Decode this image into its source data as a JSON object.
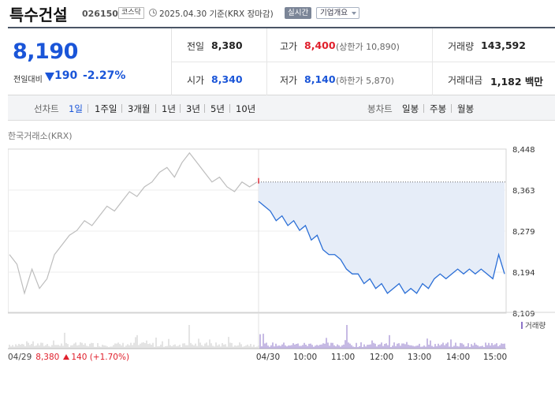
{
  "header": {
    "name": "특수건설",
    "code": "026150",
    "market": "코스닥",
    "date": "2025.04.30 기준(KRX 장마감)",
    "realtime": "실시간",
    "company_overview": "기업개요"
  },
  "summary": {
    "current_price": "8,190",
    "change_label": "전일대비",
    "change_amount": "190",
    "change_pct": "-2.27%",
    "prev_close_label": "전일",
    "prev_close": "8,380",
    "high_label": "고가",
    "high": "8,400",
    "upper_limit": "(상한가 10,890)",
    "volume_label": "거래량",
    "volume": "143,592",
    "open_label": "시가",
    "open": "8,340",
    "low_label": "저가",
    "low": "8,140",
    "lower_limit": "(하한가 5,870)",
    "amount_label": "거래대금",
    "amount": "1,182 백만"
  },
  "period_bar": {
    "line_chart_label": "선차트",
    "line_periods": [
      "1일",
      "1주일",
      "3개월",
      "1년",
      "3년",
      "5년",
      "10년"
    ],
    "active_period": "1일",
    "candle_chart_label": "봉차트",
    "candle_periods": [
      "일봉",
      "주봉",
      "월봉"
    ]
  },
  "chart": {
    "source": "한국거래소(KRX)",
    "volume_legend": "거래량",
    "prev_day_label": "04/29",
    "prev_day_close": "8,380",
    "prev_day_change": "140 (+1.70%)",
    "colors": {
      "prev_line": "#bdbdbd",
      "today_line": "#2a6ed6",
      "fill": "#e6edf8",
      "volume_prev": "#c8c8c8",
      "volume_today": "#8c74c8",
      "up": "#e0202c",
      "down": "#1a55d8"
    }
  },
  "chart_data": {
    "type": "line",
    "y_ticks": [
      "8,448",
      "8,363",
      "8,279",
      "8,194",
      "8,109"
    ],
    "ylim": [
      8109,
      8448
    ],
    "x_ticks": [
      "04/29",
      "04/30",
      "10:00",
      "11:00",
      "12:00",
      "13:00",
      "14:00",
      "15:00"
    ],
    "reference_price": 8380,
    "series": [
      {
        "day": "04/29",
        "values": [
          8230,
          8210,
          8150,
          8200,
          8160,
          8180,
          8230,
          8250,
          8270,
          8280,
          8300,
          8290,
          8310,
          8330,
          8320,
          8340,
          8360,
          8350,
          8370,
          8380,
          8400,
          8410,
          8390,
          8420,
          8440,
          8420,
          8400,
          8380,
          8390,
          8370,
          8360,
          8380,
          8370,
          8380
        ]
      },
      {
        "day": "04/30",
        "values": [
          8340,
          8330,
          8320,
          8300,
          8310,
          8290,
          8300,
          8280,
          8290,
          8260,
          8270,
          8240,
          8230,
          8230,
          8220,
          8200,
          8190,
          8190,
          8170,
          8180,
          8160,
          8170,
          8150,
          8160,
          8170,
          8150,
          8160,
          8150,
          8170,
          8160,
          8180,
          8190,
          8180,
          8190,
          8200,
          8190,
          8200,
          8190,
          8200,
          8190,
          8180,
          8230,
          8190
        ]
      }
    ]
  }
}
